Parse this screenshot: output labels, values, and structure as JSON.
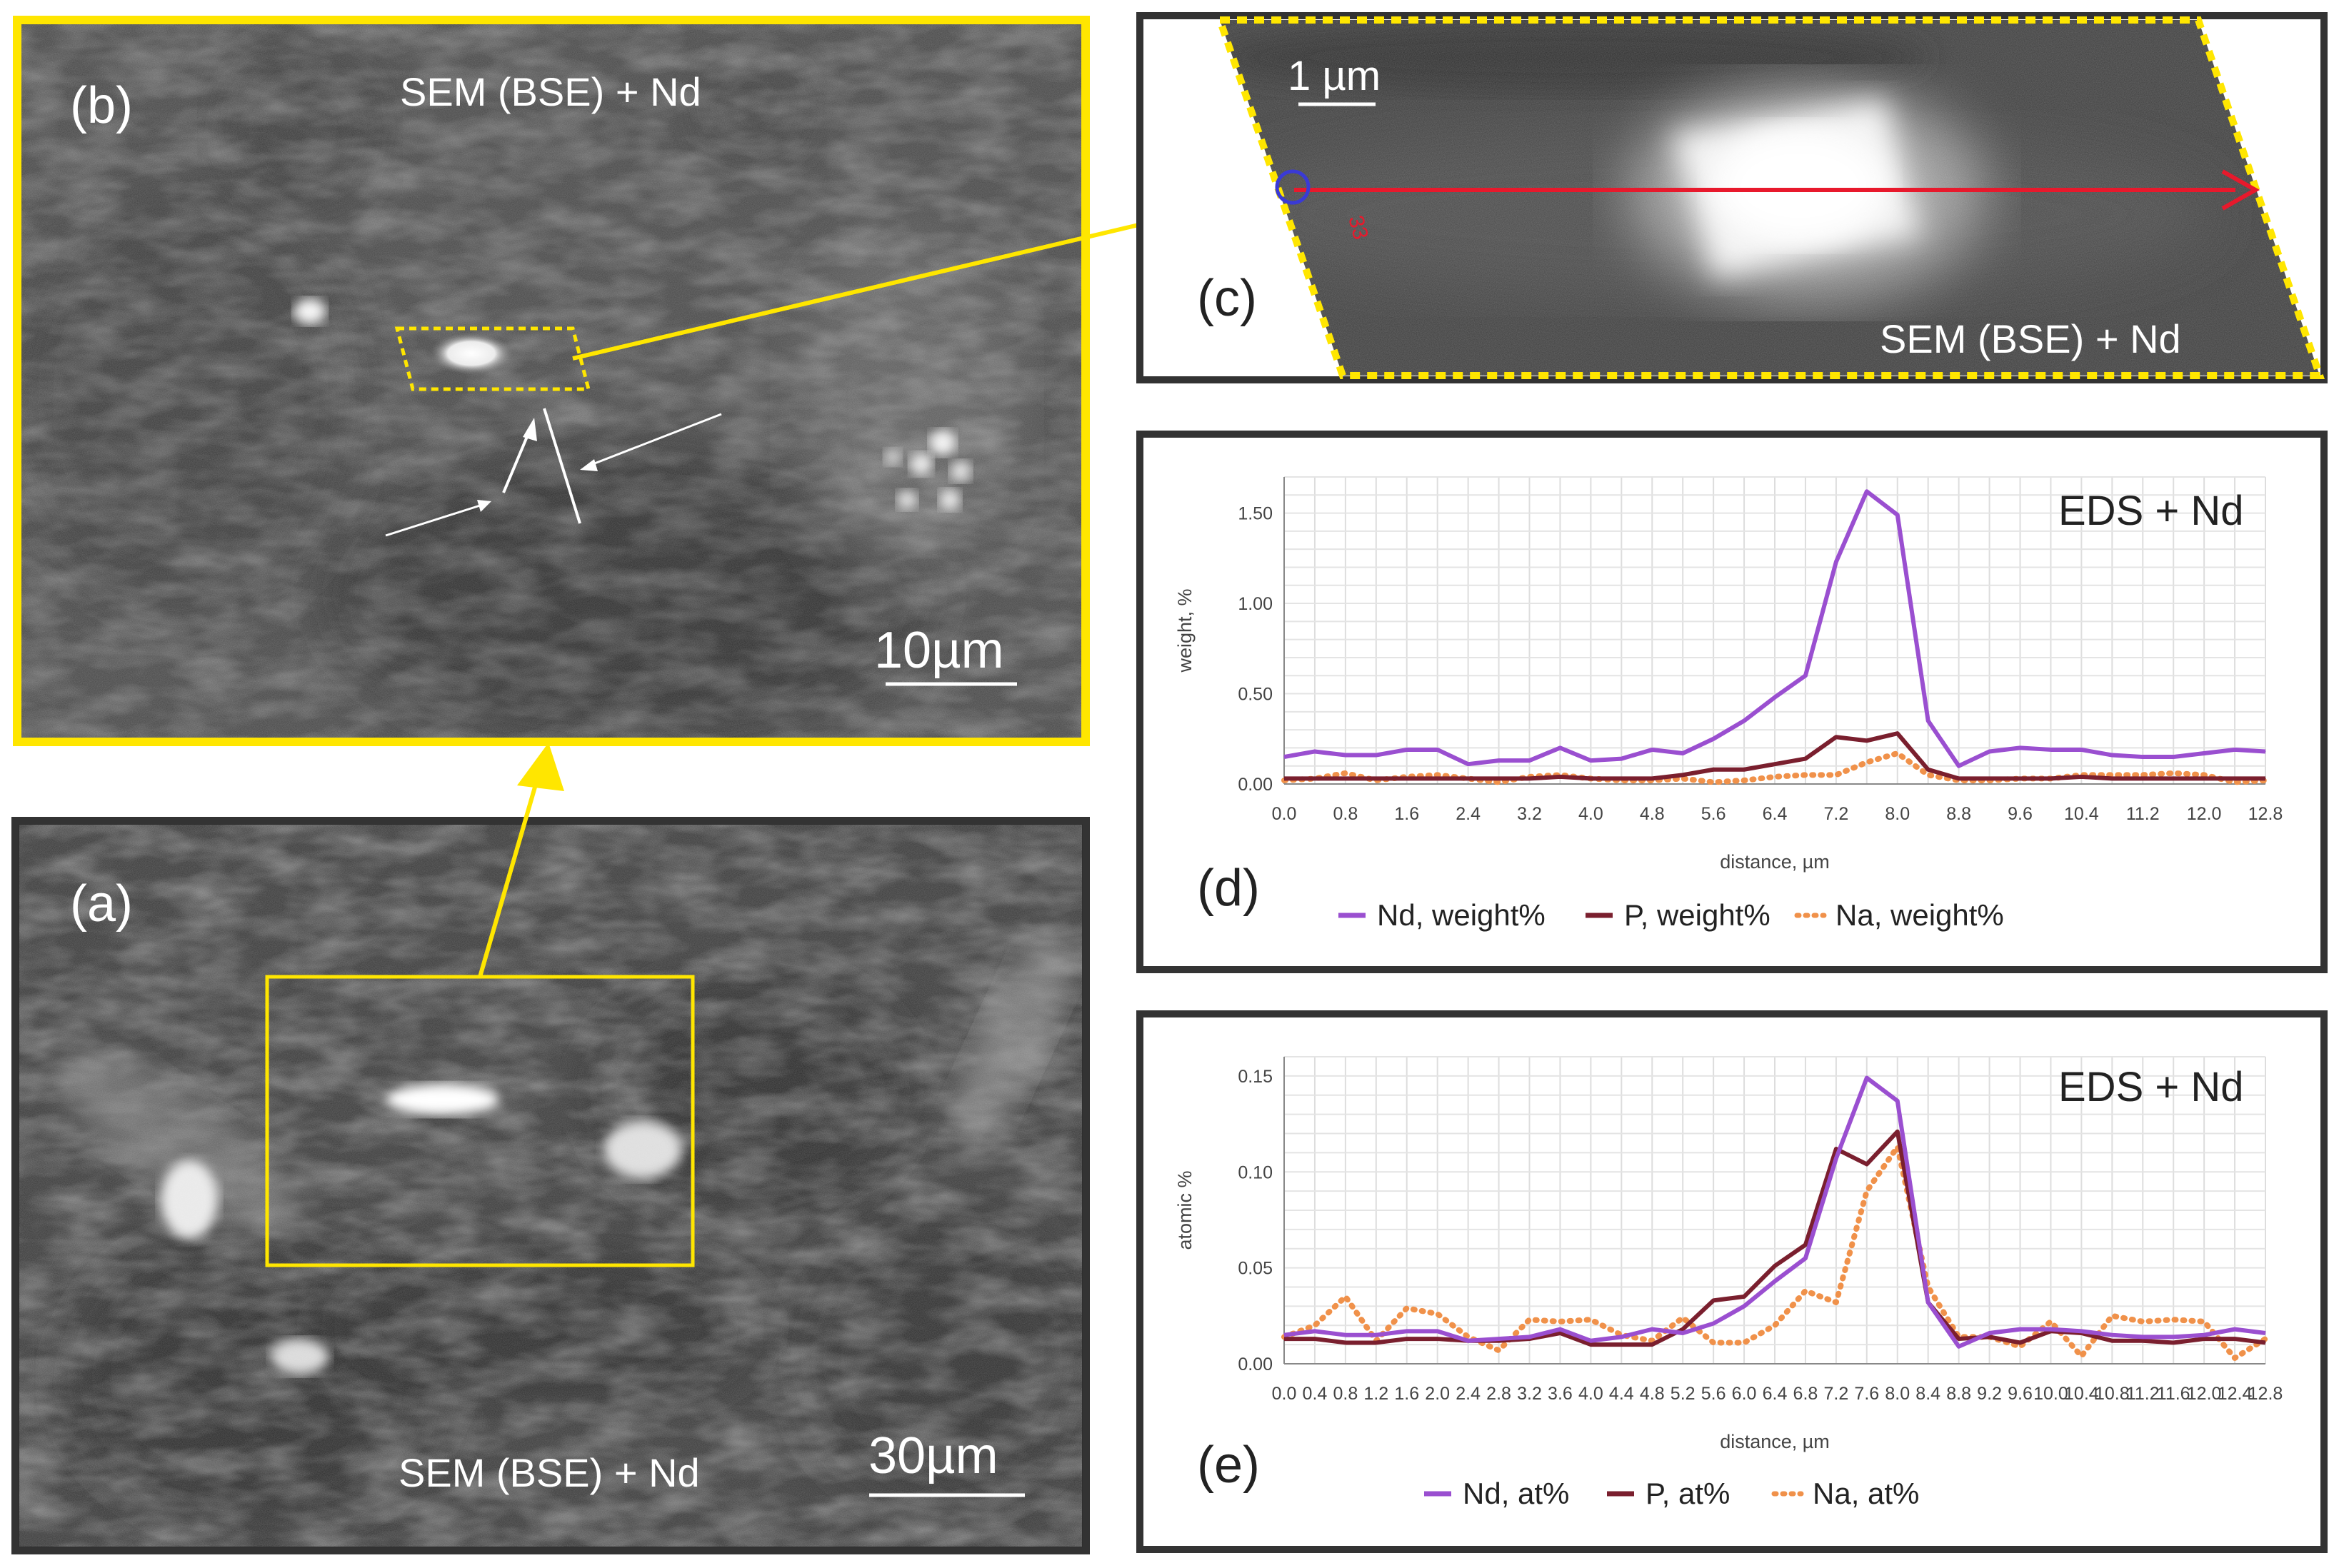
{
  "panels": {
    "a": {
      "letter": "(a)",
      "label": "SEM (BSE) + Nd",
      "scalebar": "30µm"
    },
    "b": {
      "letter": "(b)",
      "label": "SEM (BSE) + Nd",
      "scalebar": "10µm"
    },
    "c": {
      "letter": "(c)",
      "label": "SEM (BSE) + Nd",
      "scalebar": "1 µm",
      "line_number": "33"
    },
    "d": {
      "letter": "(d)",
      "title": "EDS + Nd"
    },
    "e": {
      "letter": "(e)",
      "title": "EDS + Nd"
    }
  },
  "colors": {
    "yellow": "#ffe600",
    "red": "#e8192c",
    "nd": "#9a4fd0",
    "p": "#7a1f2e",
    "na": "#f0914a"
  },
  "chart_data": [
    {
      "type": "line",
      "panel": "d",
      "title": "EDS + Nd",
      "xlabel": "distance, µm",
      "ylabel": "weight, %",
      "xlim": [
        0,
        12.8
      ],
      "ylim": [
        0,
        1.7
      ],
      "x_ticks": [
        "0.0",
        "0.4",
        "0.8",
        "1.2",
        "1.6",
        "2.0",
        "2.4",
        "2.8",
        "3.2",
        "3.6",
        "4.0",
        "4.4",
        "4.8",
        "5.2",
        "5.6",
        "6.0",
        "6.4",
        "6.8",
        "7.2",
        "7.6",
        "8.0",
        "8.4",
        "8.8",
        "9.2",
        "9.6",
        "10.0",
        "10.4",
        "10.8",
        "11.2",
        "11.6",
        "12.0",
        "12.4",
        "12.8"
      ],
      "x_tick_labels": [
        "0.0",
        "0.8",
        "1.6",
        "2.4",
        "3.2",
        "4.0",
        "4.8",
        "5.6",
        "6.4",
        "7.2",
        "8.0",
        "8.8",
        "9.6",
        "10.4",
        "11.2",
        "12.0",
        "12.8"
      ],
      "y_ticks": [
        "0.00",
        "0.50",
        "1.00",
        "1.50"
      ],
      "x": [
        0,
        0.4,
        0.8,
        1.2,
        1.6,
        2.0,
        2.4,
        2.8,
        3.2,
        3.6,
        4.0,
        4.4,
        4.8,
        5.2,
        5.6,
        6.0,
        6.4,
        6.8,
        7.2,
        7.6,
        8.0,
        8.4,
        8.8,
        9.2,
        9.6,
        10.0,
        10.4,
        10.8,
        11.2,
        11.6,
        12.0,
        12.4,
        12.8
      ],
      "series": [
        {
          "name": "Nd, weight%",
          "color": "#9a4fd0",
          "style": "solid",
          "values": [
            0.15,
            0.18,
            0.16,
            0.16,
            0.19,
            0.19,
            0.11,
            0.13,
            0.13,
            0.2,
            0.13,
            0.14,
            0.19,
            0.17,
            0.25,
            0.35,
            0.48,
            0.6,
            1.23,
            1.62,
            1.49,
            0.35,
            0.1,
            0.18,
            0.2,
            0.19,
            0.19,
            0.16,
            0.15,
            0.15,
            0.17,
            0.19,
            0.18
          ]
        },
        {
          "name": "P, weight%",
          "color": "#7a1f2e",
          "style": "solid",
          "values": [
            0.03,
            0.03,
            0.03,
            0.03,
            0.03,
            0.03,
            0.03,
            0.03,
            0.03,
            0.04,
            0.03,
            0.03,
            0.03,
            0.05,
            0.08,
            0.08,
            0.11,
            0.14,
            0.26,
            0.24,
            0.28,
            0.08,
            0.03,
            0.03,
            0.03,
            0.03,
            0.04,
            0.03,
            0.03,
            0.03,
            0.03,
            0.03,
            0.03
          ]
        },
        {
          "name": "Na, weight%",
          "color": "#f0914a",
          "style": "dotted",
          "values": [
            0.02,
            0.03,
            0.06,
            0.02,
            0.04,
            0.05,
            0.03,
            0.01,
            0.04,
            0.05,
            0.03,
            0.02,
            0.02,
            0.03,
            0.01,
            0.02,
            0.04,
            0.05,
            0.05,
            0.12,
            0.17,
            0.05,
            0.02,
            0.02,
            0.03,
            0.03,
            0.05,
            0.05,
            0.05,
            0.06,
            0.05,
            0.01,
            0.02
          ]
        }
      ]
    },
    {
      "type": "line",
      "panel": "e",
      "title": "EDS + Nd",
      "xlabel": "distance, µm",
      "ylabel": "atomic %",
      "xlim": [
        0,
        12.8
      ],
      "ylim": [
        0,
        0.16
      ],
      "x_ticks": [
        "0.0",
        "0.4",
        "0.8",
        "1.2",
        "1.6",
        "2.0",
        "2.4",
        "2.8",
        "3.2",
        "3.6",
        "4.0",
        "4.4",
        "4.8",
        "5.2",
        "5.6",
        "6.0",
        "6.4",
        "6.8",
        "7.2",
        "7.6",
        "8.0",
        "8.4",
        "8.8",
        "9.2",
        "9.6",
        "10.0",
        "10.4",
        "10.8",
        "11.2",
        "11.6",
        "12.0",
        "12.4",
        "12.8"
      ],
      "x_tick_labels": [
        "0.0",
        "0.4",
        "0.8",
        "1.2",
        "1.6",
        "2.0",
        "2.4",
        "2.8",
        "3.2",
        "3.6",
        "4.0",
        "4.4",
        "4.8",
        "5.2",
        "5.6",
        "6.0",
        "6.4",
        "6.8",
        "7.2",
        "7.6",
        "8.0",
        "8.4",
        "8.8",
        "9.2",
        "9.6",
        "10.0",
        "10.4",
        "10.8",
        "11.2",
        "11.6",
        "12.0",
        "12.4",
        "12.8"
      ],
      "y_ticks": [
        "0.00",
        "0.05",
        "0.10",
        "0.15"
      ],
      "x": [
        0,
        0.4,
        0.8,
        1.2,
        1.6,
        2.0,
        2.4,
        2.8,
        3.2,
        3.6,
        4.0,
        4.4,
        4.8,
        5.2,
        5.6,
        6.0,
        6.4,
        6.8,
        7.2,
        7.6,
        8.0,
        8.4,
        8.8,
        9.2,
        9.6,
        10.0,
        10.4,
        10.8,
        11.2,
        11.6,
        12.0,
        12.4,
        12.8
      ],
      "series": [
        {
          "name": "Nd, at%",
          "color": "#9a4fd0",
          "style": "solid",
          "values": [
            0.015,
            0.017,
            0.015,
            0.015,
            0.017,
            0.017,
            0.012,
            0.013,
            0.014,
            0.018,
            0.012,
            0.014,
            0.018,
            0.016,
            0.021,
            0.03,
            0.043,
            0.055,
            0.107,
            0.149,
            0.137,
            0.032,
            0.009,
            0.016,
            0.018,
            0.018,
            0.017,
            0.015,
            0.014,
            0.014,
            0.015,
            0.018,
            0.016
          ]
        },
        {
          "name": "P, at%",
          "color": "#7a1f2e",
          "style": "solid",
          "values": [
            0.013,
            0.013,
            0.011,
            0.011,
            0.013,
            0.013,
            0.012,
            0.012,
            0.013,
            0.016,
            0.01,
            0.01,
            0.01,
            0.018,
            0.033,
            0.035,
            0.051,
            0.062,
            0.112,
            0.104,
            0.121,
            0.032,
            0.013,
            0.014,
            0.011,
            0.017,
            0.016,
            0.012,
            0.012,
            0.011,
            0.013,
            0.013,
            0.011
          ]
        },
        {
          "name": "Na, at%",
          "color": "#f0914a",
          "style": "dotted",
          "values": [
            0.014,
            0.02,
            0.035,
            0.012,
            0.029,
            0.026,
            0.014,
            0.007,
            0.023,
            0.022,
            0.023,
            0.015,
            0.012,
            0.024,
            0.011,
            0.011,
            0.02,
            0.038,
            0.032,
            0.09,
            0.113,
            0.04,
            0.014,
            0.014,
            0.009,
            0.022,
            0.004,
            0.025,
            0.022,
            0.023,
            0.022,
            0.003,
            0.013
          ]
        }
      ]
    }
  ]
}
